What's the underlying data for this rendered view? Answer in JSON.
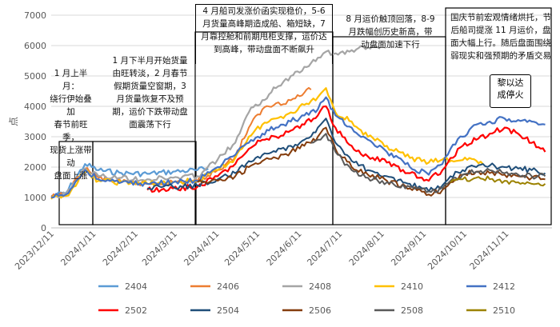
{
  "chart_data": {
    "type": "line",
    "ylabel": "点",
    "ylim": [
      0,
      7000
    ],
    "yticks": [
      0,
      1000,
      2000,
      3000,
      4000,
      5000,
      6000,
      7000
    ],
    "xtick_labels": [
      "2023/12/11",
      "2024/1/11",
      "2024/2/11",
      "2024/3/11",
      "2024/4/11",
      "2024/5/11",
      "2024/6/11",
      "2024/7/11",
      "2024/8/11",
      "2024/9/11",
      "2024/10/11",
      "2024/11/11"
    ],
    "grid": true,
    "legend_placement": "bottom",
    "series": [
      {
        "name": "2404",
        "color": "#5B9BD5",
        "width": 2.2,
        "points": [
          [
            "2023-12-11",
            1050
          ],
          [
            "2023-12-22",
            1150
          ],
          [
            "2024-01-05",
            2100
          ],
          [
            "2024-01-15",
            1900
          ],
          [
            "2024-02-01",
            1800
          ],
          [
            "2024-02-20",
            1780
          ],
          [
            "2024-03-10",
            1850
          ],
          [
            "2024-03-28",
            1900
          ],
          [
            "2024-04-05",
            1950
          ]
        ]
      },
      {
        "name": "2406",
        "color": "#ED7D31",
        "width": 2.0,
        "points": [
          [
            "2023-12-11",
            1000
          ],
          [
            "2023-12-22",
            1100
          ],
          [
            "2024-01-05",
            1950
          ],
          [
            "2024-01-15",
            1650
          ],
          [
            "2024-02-01",
            1500
          ],
          [
            "2024-02-20",
            1450
          ],
          [
            "2024-03-10",
            1500
          ],
          [
            "2024-03-28",
            1550
          ],
          [
            "2024-04-12",
            1900
          ],
          [
            "2024-04-25",
            2350
          ],
          [
            "2024-05-05",
            3300
          ],
          [
            "2024-05-15",
            3900
          ],
          [
            "2024-05-25",
            4100
          ],
          [
            "2024-06-05",
            4200
          ],
          [
            "2024-06-15",
            4450
          ],
          [
            "2024-06-20",
            4550
          ]
        ]
      },
      {
        "name": "2408",
        "color": "#A5A5A5",
        "width": 2.2,
        "points": [
          [
            "2023-12-11",
            1000
          ],
          [
            "2023-12-22",
            1100
          ],
          [
            "2024-01-05",
            1950
          ],
          [
            "2024-01-15",
            1700
          ],
          [
            "2024-02-01",
            1650
          ],
          [
            "2024-02-20",
            1600
          ],
          [
            "2024-03-10",
            1650
          ],
          [
            "2024-03-28",
            1700
          ],
          [
            "2024-04-12",
            2250
          ],
          [
            "2024-04-25",
            2800
          ],
          [
            "2024-05-05",
            3800
          ],
          [
            "2024-05-15",
            4200
          ],
          [
            "2024-05-25",
            4600
          ],
          [
            "2024-06-05",
            5000
          ],
          [
            "2024-06-15",
            5300
          ],
          [
            "2024-06-25",
            5600
          ],
          [
            "2024-07-01",
            5800
          ],
          [
            "2024-07-10",
            5700
          ],
          [
            "2024-07-20",
            5850
          ],
          [
            "2024-08-01",
            5950
          ],
          [
            "2024-08-10",
            5900
          ]
        ]
      },
      {
        "name": "2410",
        "color": "#FFC000",
        "width": 2.2,
        "points": [
          [
            "2023-12-11",
            950
          ],
          [
            "2023-12-22",
            1050
          ],
          [
            "2024-01-05",
            1850
          ],
          [
            "2024-01-15",
            1550
          ],
          [
            "2024-02-01",
            1500
          ],
          [
            "2024-02-20",
            1450
          ],
          [
            "2024-03-10",
            1500
          ],
          [
            "2024-03-28",
            1550
          ],
          [
            "2024-04-12",
            1900
          ],
          [
            "2024-04-25",
            2300
          ],
          [
            "2024-05-05",
            3000
          ],
          [
            "2024-05-15",
            3400
          ],
          [
            "2024-05-25",
            3600
          ],
          [
            "2024-06-05",
            3800
          ],
          [
            "2024-06-15",
            4050
          ],
          [
            "2024-06-25",
            4300
          ],
          [
            "2024-07-01",
            4600
          ],
          [
            "2024-07-08",
            3800
          ],
          [
            "2024-07-20",
            3500
          ],
          [
            "2024-08-01",
            3000
          ],
          [
            "2024-08-15",
            2700
          ],
          [
            "2024-09-01",
            2300
          ],
          [
            "2024-09-15",
            2150
          ],
          [
            "2024-09-25",
            2250
          ],
          [
            "2024-10-05",
            2200
          ],
          [
            "2024-10-15",
            2300
          ],
          [
            "2024-10-25",
            2100
          ]
        ]
      },
      {
        "name": "2412",
        "color": "#4472C4",
        "width": 2.2,
        "points": [
          [
            "2023-12-11",
            1000
          ],
          [
            "2023-12-22",
            1100
          ],
          [
            "2024-01-05",
            1900
          ],
          [
            "2024-01-15",
            1600
          ],
          [
            "2024-02-01",
            1500
          ],
          [
            "2024-02-20",
            1450
          ],
          [
            "2024-03-10",
            1500
          ],
          [
            "2024-03-28",
            1550
          ],
          [
            "2024-04-12",
            2000
          ],
          [
            "2024-04-25",
            2400
          ],
          [
            "2024-05-05",
            2800
          ],
          [
            "2024-05-15",
            3100
          ],
          [
            "2024-05-25",
            3300
          ],
          [
            "2024-06-05",
            3500
          ],
          [
            "2024-06-15",
            3700
          ],
          [
            "2024-06-25",
            3900
          ],
          [
            "2024-07-01",
            4300
          ],
          [
            "2024-07-08",
            3700
          ],
          [
            "2024-07-20",
            3300
          ],
          [
            "2024-08-01",
            2900
          ],
          [
            "2024-08-15",
            2500
          ],
          [
            "2024-09-01",
            2000
          ],
          [
            "2024-09-15",
            1750
          ],
          [
            "2024-09-25",
            2100
          ],
          [
            "2024-10-01",
            2600
          ],
          [
            "2024-10-10",
            3000
          ],
          [
            "2024-10-20",
            3400
          ],
          [
            "2024-10-30",
            3500
          ],
          [
            "2024-11-10",
            3600
          ],
          [
            "2024-11-20",
            3550
          ],
          [
            "2024-11-30",
            3500
          ],
          [
            "2024-12-10",
            3400
          ]
        ]
      },
      {
        "name": "2502",
        "color": "#FF0000",
        "width": 2.2,
        "points": [
          [
            "2024-02-20",
            1250
          ],
          [
            "2024-03-10",
            1300
          ],
          [
            "2024-03-28",
            1350
          ],
          [
            "2024-04-12",
            1700
          ],
          [
            "2024-04-25",
            2100
          ],
          [
            "2024-05-05",
            2600
          ],
          [
            "2024-05-15",
            2900
          ],
          [
            "2024-05-25",
            3000
          ],
          [
            "2024-06-05",
            3200
          ],
          [
            "2024-06-15",
            3400
          ],
          [
            "2024-06-25",
            3700
          ],
          [
            "2024-07-01",
            4000
          ],
          [
            "2024-07-08",
            3300
          ],
          [
            "2024-07-20",
            2700
          ],
          [
            "2024-08-01",
            2350
          ],
          [
            "2024-08-15",
            2150
          ],
          [
            "2024-09-01",
            1800
          ],
          [
            "2024-09-15",
            1550
          ],
          [
            "2024-09-25",
            1900
          ],
          [
            "2024-10-01",
            2300
          ],
          [
            "2024-10-10",
            2700
          ],
          [
            "2024-10-20",
            2900
          ],
          [
            "2024-10-30",
            3100
          ],
          [
            "2024-11-10",
            3300
          ],
          [
            "2024-11-20",
            3100
          ],
          [
            "2024-11-30",
            2800
          ],
          [
            "2024-12-10",
            2500
          ]
        ]
      },
      {
        "name": "2504",
        "color": "#1F4E79",
        "width": 2.0,
        "points": [
          [
            "2024-02-20",
            1300
          ],
          [
            "2024-03-10",
            1350
          ],
          [
            "2024-03-28",
            1400
          ],
          [
            "2024-04-12",
            1600
          ],
          [
            "2024-04-25",
            1800
          ],
          [
            "2024-05-05",
            2200
          ],
          [
            "2024-05-15",
            2400
          ],
          [
            "2024-05-25",
            2500
          ],
          [
            "2024-06-05",
            2700
          ],
          [
            "2024-06-15",
            2900
          ],
          [
            "2024-06-25",
            3300
          ],
          [
            "2024-07-01",
            3600
          ],
          [
            "2024-07-08",
            2800
          ],
          [
            "2024-07-20",
            2200
          ],
          [
            "2024-08-01",
            1900
          ],
          [
            "2024-08-15",
            1700
          ],
          [
            "2024-09-01",
            1450
          ],
          [
            "2024-09-15",
            1200
          ],
          [
            "2024-09-25",
            1400
          ],
          [
            "2024-10-01",
            1700
          ],
          [
            "2024-10-10",
            1900
          ],
          [
            "2024-10-20",
            2000
          ],
          [
            "2024-10-30",
            2050
          ],
          [
            "2024-11-10",
            2000
          ],
          [
            "2024-11-20",
            1950
          ],
          [
            "2024-11-30",
            1900
          ],
          [
            "2024-12-10",
            1800
          ]
        ]
      },
      {
        "name": "2506",
        "color": "#843C0C",
        "width": 2.0,
        "points": [
          [
            "2024-03-28",
            1500
          ],
          [
            "2024-04-12",
            1550
          ],
          [
            "2024-04-25",
            1700
          ],
          [
            "2024-05-05",
            2000
          ],
          [
            "2024-05-15",
            2200
          ],
          [
            "2024-05-25",
            2300
          ],
          [
            "2024-06-05",
            2500
          ],
          [
            "2024-06-15",
            2700
          ],
          [
            "2024-06-25",
            3000
          ],
          [
            "2024-07-01",
            3300
          ],
          [
            "2024-07-08",
            2600
          ],
          [
            "2024-07-20",
            2000
          ],
          [
            "2024-08-01",
            1750
          ],
          [
            "2024-08-15",
            1550
          ],
          [
            "2024-09-01",
            1300
          ],
          [
            "2024-09-15",
            1100
          ],
          [
            "2024-09-25",
            1250
          ],
          [
            "2024-10-01",
            1500
          ],
          [
            "2024-10-10",
            1750
          ],
          [
            "2024-10-20",
            1850
          ],
          [
            "2024-10-30",
            1800
          ],
          [
            "2024-11-10",
            1750
          ],
          [
            "2024-11-20",
            1700
          ],
          [
            "2024-11-30",
            1650
          ],
          [
            "2024-12-10",
            1600
          ]
        ]
      },
      {
        "name": "2508",
        "color": "#595959",
        "width": 2.0,
        "points": [
          [
            "2024-06-20",
            2800
          ],
          [
            "2024-06-25",
            2900
          ],
          [
            "2024-07-01",
            3100
          ],
          [
            "2024-07-08",
            2500
          ],
          [
            "2024-07-20",
            1900
          ],
          [
            "2024-08-01",
            1650
          ],
          [
            "2024-08-15",
            1500
          ],
          [
            "2024-09-01",
            1350
          ],
          [
            "2024-09-15",
            1200
          ],
          [
            "2024-09-25",
            1300
          ],
          [
            "2024-10-01",
            1550
          ],
          [
            "2024-10-10",
            1750
          ],
          [
            "2024-10-20",
            1850
          ],
          [
            "2024-10-30",
            1900
          ],
          [
            "2024-11-10",
            1800
          ],
          [
            "2024-11-20",
            1750
          ],
          [
            "2024-11-30",
            1700
          ],
          [
            "2024-12-10",
            1700
          ]
        ]
      },
      {
        "name": "2510",
        "color": "#9C8200",
        "width": 2.0,
        "points": [
          [
            "2024-10-01",
            1500
          ],
          [
            "2024-10-10",
            1600
          ],
          [
            "2024-10-20",
            1650
          ],
          [
            "2024-10-30",
            1600
          ],
          [
            "2024-11-10",
            1550
          ],
          [
            "2024-11-20",
            1500
          ],
          [
            "2024-11-30",
            1450
          ],
          [
            "2024-12-10",
            1450
          ]
        ]
      }
    ],
    "annotations": [
      {
        "id": "a1",
        "text": "1 月上半月：\n绕行伊始叠加\n春节前旺季，\n现货上涨带动\n盘面上涨"
      },
      {
        "id": "a2",
        "text": "1 月下半月开始货量\n由旺转淡，2 月春节\n假期货量空窗期，3\n月货量恢复不及预\n期，运价下跌带动盘\n面震荡下行"
      },
      {
        "id": "a3",
        "text": "4 月船司发涨价函实现稳价，5-6\n月货量高峰期造成船、箱短缺，7\n月靠控舱和前期甩柜支撑，运价达\n到高峰，带动盘面不断飙升"
      },
      {
        "id": "a4",
        "text": "8 月运价触顶回落，8-9\n月跌幅创历史新高，带\n动盘面加速下行"
      },
      {
        "id": "a5",
        "text": "国庆节前宏观情绪烘托，节\n后船司提涨 11 月运价，盘\n面大幅上行。随后盘面围绕\n弱现实和强预期的矛盾交易"
      },
      {
        "id": "callout",
        "text": "黎以达\n成停火"
      }
    ]
  }
}
